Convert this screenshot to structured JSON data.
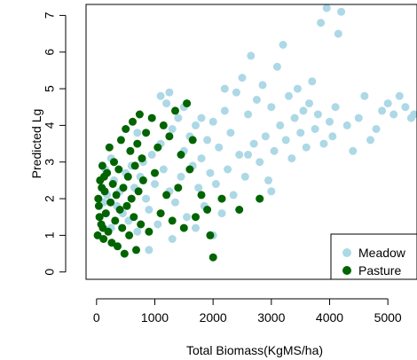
{
  "chart_data": {
    "type": "scatter",
    "xlabel": "Total Biomass(KgMS/ha)",
    "ylabel": "Predicted Lg",
    "xlim": [
      -180,
      5500
    ],
    "ylim": [
      -0.2,
      7.3
    ],
    "x_ticks": [
      "0",
      "1000",
      "2000",
      "3000",
      "4000",
      "5000"
    ],
    "y_ticks": [
      "0",
      "1",
      "2",
      "3",
      "4",
      "5",
      "6",
      "7"
    ],
    "grid": false,
    "legend_position": "bottom-right",
    "series": [
      {
        "name": "Meadow",
        "color": "#add8e6",
        "points": [
          [
            60,
            1.5
          ],
          [
            120,
            1.9
          ],
          [
            180,
            2.1
          ],
          [
            250,
            1.2
          ],
          [
            300,
            2.5
          ],
          [
            350,
            1.8
          ],
          [
            400,
            2.2
          ],
          [
            450,
            1.6
          ],
          [
            500,
            2.7
          ],
          [
            550,
            1.4
          ],
          [
            600,
            2.9
          ],
          [
            650,
            2.3
          ],
          [
            700,
            1.1
          ],
          [
            750,
            2.6
          ],
          [
            800,
            3.0
          ],
          [
            850,
            2.0
          ],
          [
            900,
            1.7
          ],
          [
            950,
            3.2
          ],
          [
            1000,
            2.4
          ],
          [
            1050,
            1.3
          ],
          [
            1100,
            3.5
          ],
          [
            1150,
            2.8
          ],
          [
            1200,
            4.6
          ],
          [
            1250,
            2.2
          ],
          [
            1300,
            3.9
          ],
          [
            1350,
            1.9
          ],
          [
            1400,
            4.2
          ],
          [
            1450,
            2.6
          ],
          [
            1500,
            3.3
          ],
          [
            1550,
            1.5
          ],
          [
            1600,
            3.7
          ],
          [
            1650,
            2.9
          ],
          [
            1700,
            4.0
          ],
          [
            1750,
            2.3
          ],
          [
            1800,
            3.1
          ],
          [
            1850,
            1.8
          ],
          [
            1900,
            3.6
          ],
          [
            1950,
            2.7
          ],
          [
            2000,
            4.1
          ],
          [
            2050,
            2.4
          ],
          [
            2100,
            3.4
          ],
          [
            2150,
            1.6
          ],
          [
            2200,
            4.4
          ],
          [
            2250,
            2.8
          ],
          [
            2300,
            3.8
          ],
          [
            2350,
            2.1
          ],
          [
            2400,
            4.9
          ],
          [
            2450,
            3.2
          ],
          [
            2500,
            5.3
          ],
          [
            2550,
            2.6
          ],
          [
            2600,
            4.3
          ],
          [
            2650,
            5.9
          ],
          [
            2700,
            3.5
          ],
          [
            2750,
            4.7
          ],
          [
            2800,
            3.0
          ],
          [
            2850,
            5.1
          ],
          [
            2900,
            3.7
          ],
          [
            2950,
            2.5
          ],
          [
            3000,
            4.5
          ],
          [
            3050,
            3.3
          ],
          [
            3100,
            5.6
          ],
          [
            3150,
            4.0
          ],
          [
            3200,
            6.2
          ],
          [
            3250,
            3.6
          ],
          [
            3300,
            4.8
          ],
          [
            3350,
            3.1
          ],
          [
            3400,
            4.2
          ],
          [
            3450,
            5.0
          ],
          [
            3500,
            3.8
          ],
          [
            3550,
            4.4
          ],
          [
            3600,
            3.4
          ],
          [
            3650,
            4.6
          ],
          [
            3700,
            5.2
          ],
          [
            3750,
            3.9
          ],
          [
            3800,
            4.3
          ],
          [
            3850,
            6.8
          ],
          [
            3900,
            3.5
          ],
          [
            3950,
            7.2
          ],
          [
            4000,
            4.1
          ],
          [
            4050,
            3.7
          ],
          [
            4100,
            4.5
          ],
          [
            4150,
            6.5
          ],
          [
            4200,
            7.1
          ],
          [
            4300,
            4.0
          ],
          [
            4400,
            3.3
          ],
          [
            4500,
            4.2
          ],
          [
            4600,
            4.8
          ],
          [
            4700,
            3.6
          ],
          [
            4800,
            3.9
          ],
          [
            4900,
            4.4
          ],
          [
            5000,
            4.6
          ],
          [
            5100,
            4.3
          ],
          [
            5200,
            4.8
          ],
          [
            5300,
            4.5
          ],
          [
            5400,
            4.2
          ],
          [
            5450,
            4.3
          ],
          [
            900,
            0.6
          ],
          [
            1300,
            0.9
          ],
          [
            1700,
            1.2
          ],
          [
            2000,
            1.0
          ],
          [
            150,
            2.8
          ],
          [
            250,
            3.1
          ],
          [
            700,
            3.8
          ],
          [
            1100,
            4.8
          ],
          [
            1250,
            4.9
          ],
          [
            1500,
            4.5
          ],
          [
            1800,
            4.2
          ],
          [
            2200,
            5.0
          ],
          [
            2600,
            3.2
          ],
          [
            3000,
            2.2
          ]
        ]
      },
      {
        "name": "Pasture",
        "color": "#006400",
        "points": [
          [
            20,
            1.0
          ],
          [
            40,
            1.8
          ],
          [
            60,
            2.5
          ],
          [
            80,
            1.3
          ],
          [
            100,
            2.9
          ],
          [
            120,
            0.9
          ],
          [
            140,
            2.2
          ],
          [
            160,
            1.6
          ],
          [
            180,
            2.7
          ],
          [
            200,
            1.1
          ],
          [
            220,
            3.4
          ],
          [
            240,
            1.9
          ],
          [
            260,
            0.8
          ],
          [
            280,
            2.4
          ],
          [
            300,
            3.0
          ],
          [
            320,
            1.4
          ],
          [
            340,
            2.1
          ],
          [
            360,
            0.7
          ],
          [
            380,
            2.8
          ],
          [
            400,
            1.7
          ],
          [
            420,
            3.6
          ],
          [
            440,
            1.2
          ],
          [
            460,
            2.3
          ],
          [
            480,
            0.5
          ],
          [
            500,
            3.9
          ],
          [
            520,
            1.8
          ],
          [
            540,
            2.6
          ],
          [
            560,
            1.0
          ],
          [
            580,
            3.3
          ],
          [
            600,
            2.0
          ],
          [
            620,
            4.1
          ],
          [
            640,
            1.5
          ],
          [
            660,
            2.9
          ],
          [
            680,
            0.6
          ],
          [
            700,
            3.5
          ],
          [
            720,
            2.2
          ],
          [
            740,
            4.3
          ],
          [
            760,
            1.3
          ],
          [
            780,
            3.1
          ],
          [
            800,
            2.5
          ],
          [
            850,
            3.8
          ],
          [
            900,
            1.1
          ],
          [
            950,
            4.2
          ],
          [
            1000,
            2.7
          ],
          [
            1050,
            3.4
          ],
          [
            1100,
            1.6
          ],
          [
            1150,
            4.0
          ],
          [
            1200,
            2.1
          ],
          [
            1250,
            3.7
          ],
          [
            1300,
            1.4
          ],
          [
            1350,
            4.4
          ],
          [
            1400,
            2.3
          ],
          [
            1450,
            3.2
          ],
          [
            1500,
            1.2
          ],
          [
            1550,
            4.6
          ],
          [
            1600,
            2.8
          ],
          [
            1650,
            3.6
          ],
          [
            1700,
            1.5
          ],
          [
            1800,
            2.1
          ],
          [
            1900,
            1.7
          ],
          [
            1950,
            1.0
          ],
          [
            2000,
            0.4
          ],
          [
            2150,
            2.0
          ],
          [
            2450,
            1.7
          ],
          [
            2800,
            2.0
          ],
          [
            30,
            2.0
          ],
          [
            50,
            1.5
          ],
          [
            90,
            2.3
          ],
          [
            110,
            1.2
          ],
          [
            130,
            2.6
          ]
        ]
      }
    ]
  }
}
